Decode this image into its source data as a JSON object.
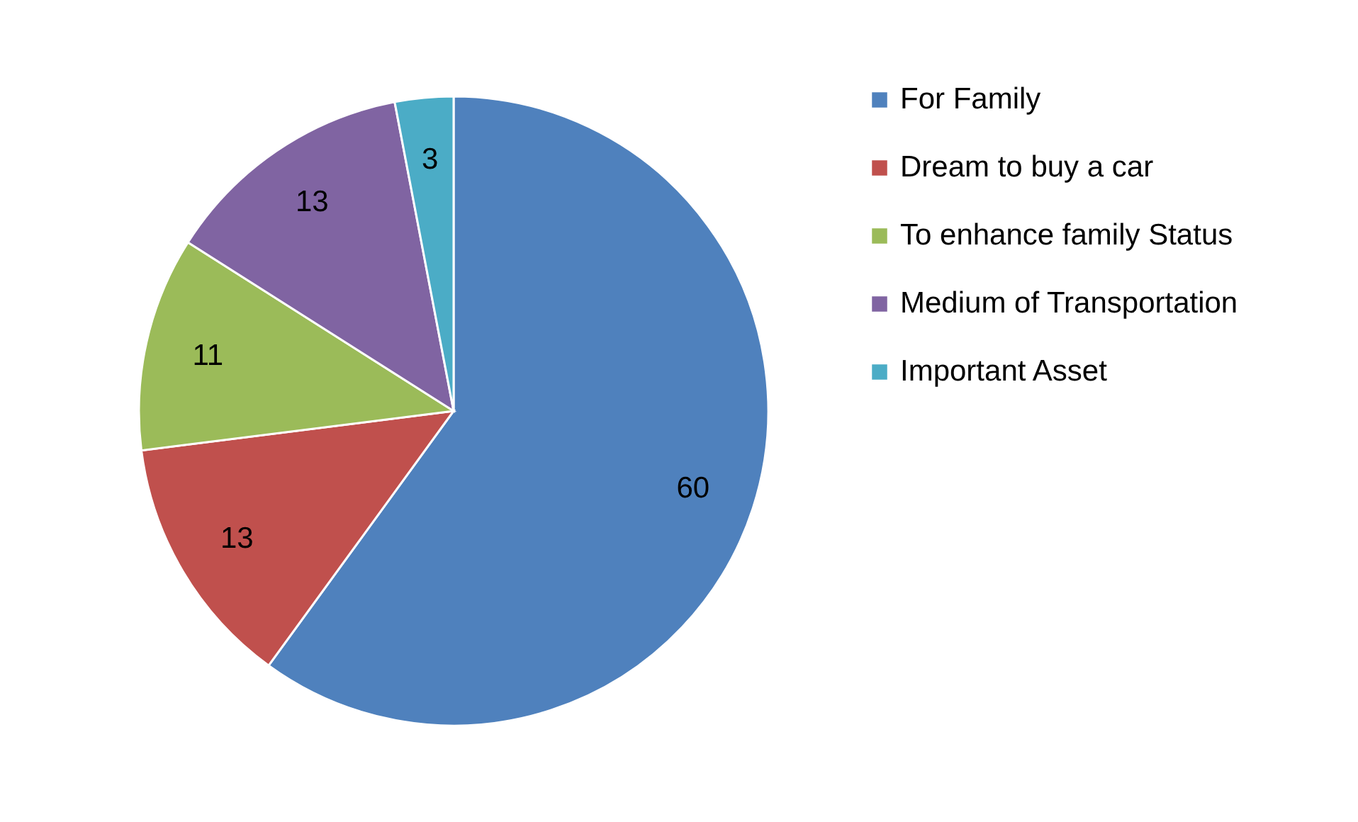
{
  "chart_data": {
    "type": "pie",
    "categories": [
      "For Family",
      "Dream to buy a car",
      "To enhance family Status",
      "Medium of Transportation",
      "Important Asset"
    ],
    "values": [
      60,
      13,
      11,
      13,
      3
    ],
    "colors": [
      "#4f81bd",
      "#c0504d",
      "#9bbb59",
      "#8064a2",
      "#4bacc6"
    ],
    "data_labels": true,
    "legend": "right"
  }
}
